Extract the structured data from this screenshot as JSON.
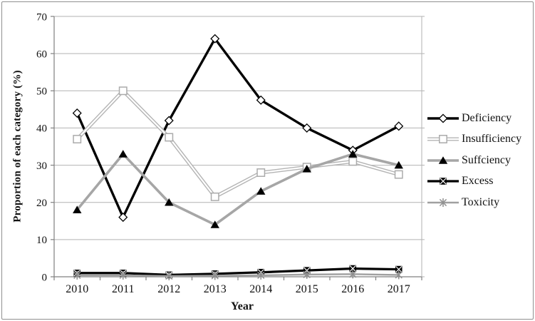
{
  "figure": {
    "background": "#ffffff",
    "border_color": "#8f8f8f"
  },
  "chart_data": {
    "type": "line",
    "title": "",
    "xlabel": "Year",
    "ylabel": "Proportion of each category (%)",
    "categories": [
      "2010",
      "2011",
      "2012",
      "2013",
      "2014",
      "2015",
      "2016",
      "2017"
    ],
    "ylim": [
      0,
      70
    ],
    "yticks": [
      0,
      10,
      20,
      30,
      40,
      50,
      60,
      70
    ],
    "grid": "horizontal-only",
    "grid_color": "#b2b2b2",
    "axis_color": "#808080",
    "text_color": "#111111",
    "legend_position": "right",
    "series": [
      {
        "name": "Deficiency",
        "values": [
          44,
          16,
          42,
          64,
          47.5,
          40,
          34,
          40.5
        ],
        "color": "#000000",
        "line_width": 3.4,
        "line_style": "solid",
        "marker": "diamond-open",
        "marker_stroke": "#000000",
        "marker_fill": "#ffffff"
      },
      {
        "name": "Insufficiency",
        "values": [
          37,
          50,
          37.5,
          21.5,
          28,
          29.5,
          31,
          27.5
        ],
        "color": "#b4b4b4",
        "line_width": 5,
        "line_style": "double",
        "marker": "square-open",
        "marker_stroke": "#ababab",
        "marker_fill": "#ffffff"
      },
      {
        "name": "Suffciency",
        "values": [
          18,
          33,
          20,
          14,
          23,
          29,
          33,
          30
        ],
        "color": "#a6a6a6",
        "line_width": 3.6,
        "line_style": "solid",
        "marker": "triangle-filled",
        "marker_stroke": "#000000",
        "marker_fill": "#000000"
      },
      {
        "name": "Excess",
        "values": [
          1,
          1,
          0.5,
          0.8,
          1.2,
          1.7,
          2.2,
          2
        ],
        "color": "#000000",
        "line_width": 3.2,
        "line_style": "solid",
        "marker": "square-x",
        "marker_stroke": "#000000",
        "marker_fill": "#000000"
      },
      {
        "name": "Toxicity",
        "values": [
          0.4,
          0.4,
          0.2,
          0.3,
          0.4,
          0.6,
          0.7,
          0.5
        ],
        "color": "#a0a0a0",
        "line_width": 2.4,
        "line_style": "solid",
        "marker": "star",
        "marker_stroke": "#8f8f8f",
        "marker_fill": "none"
      }
    ]
  }
}
